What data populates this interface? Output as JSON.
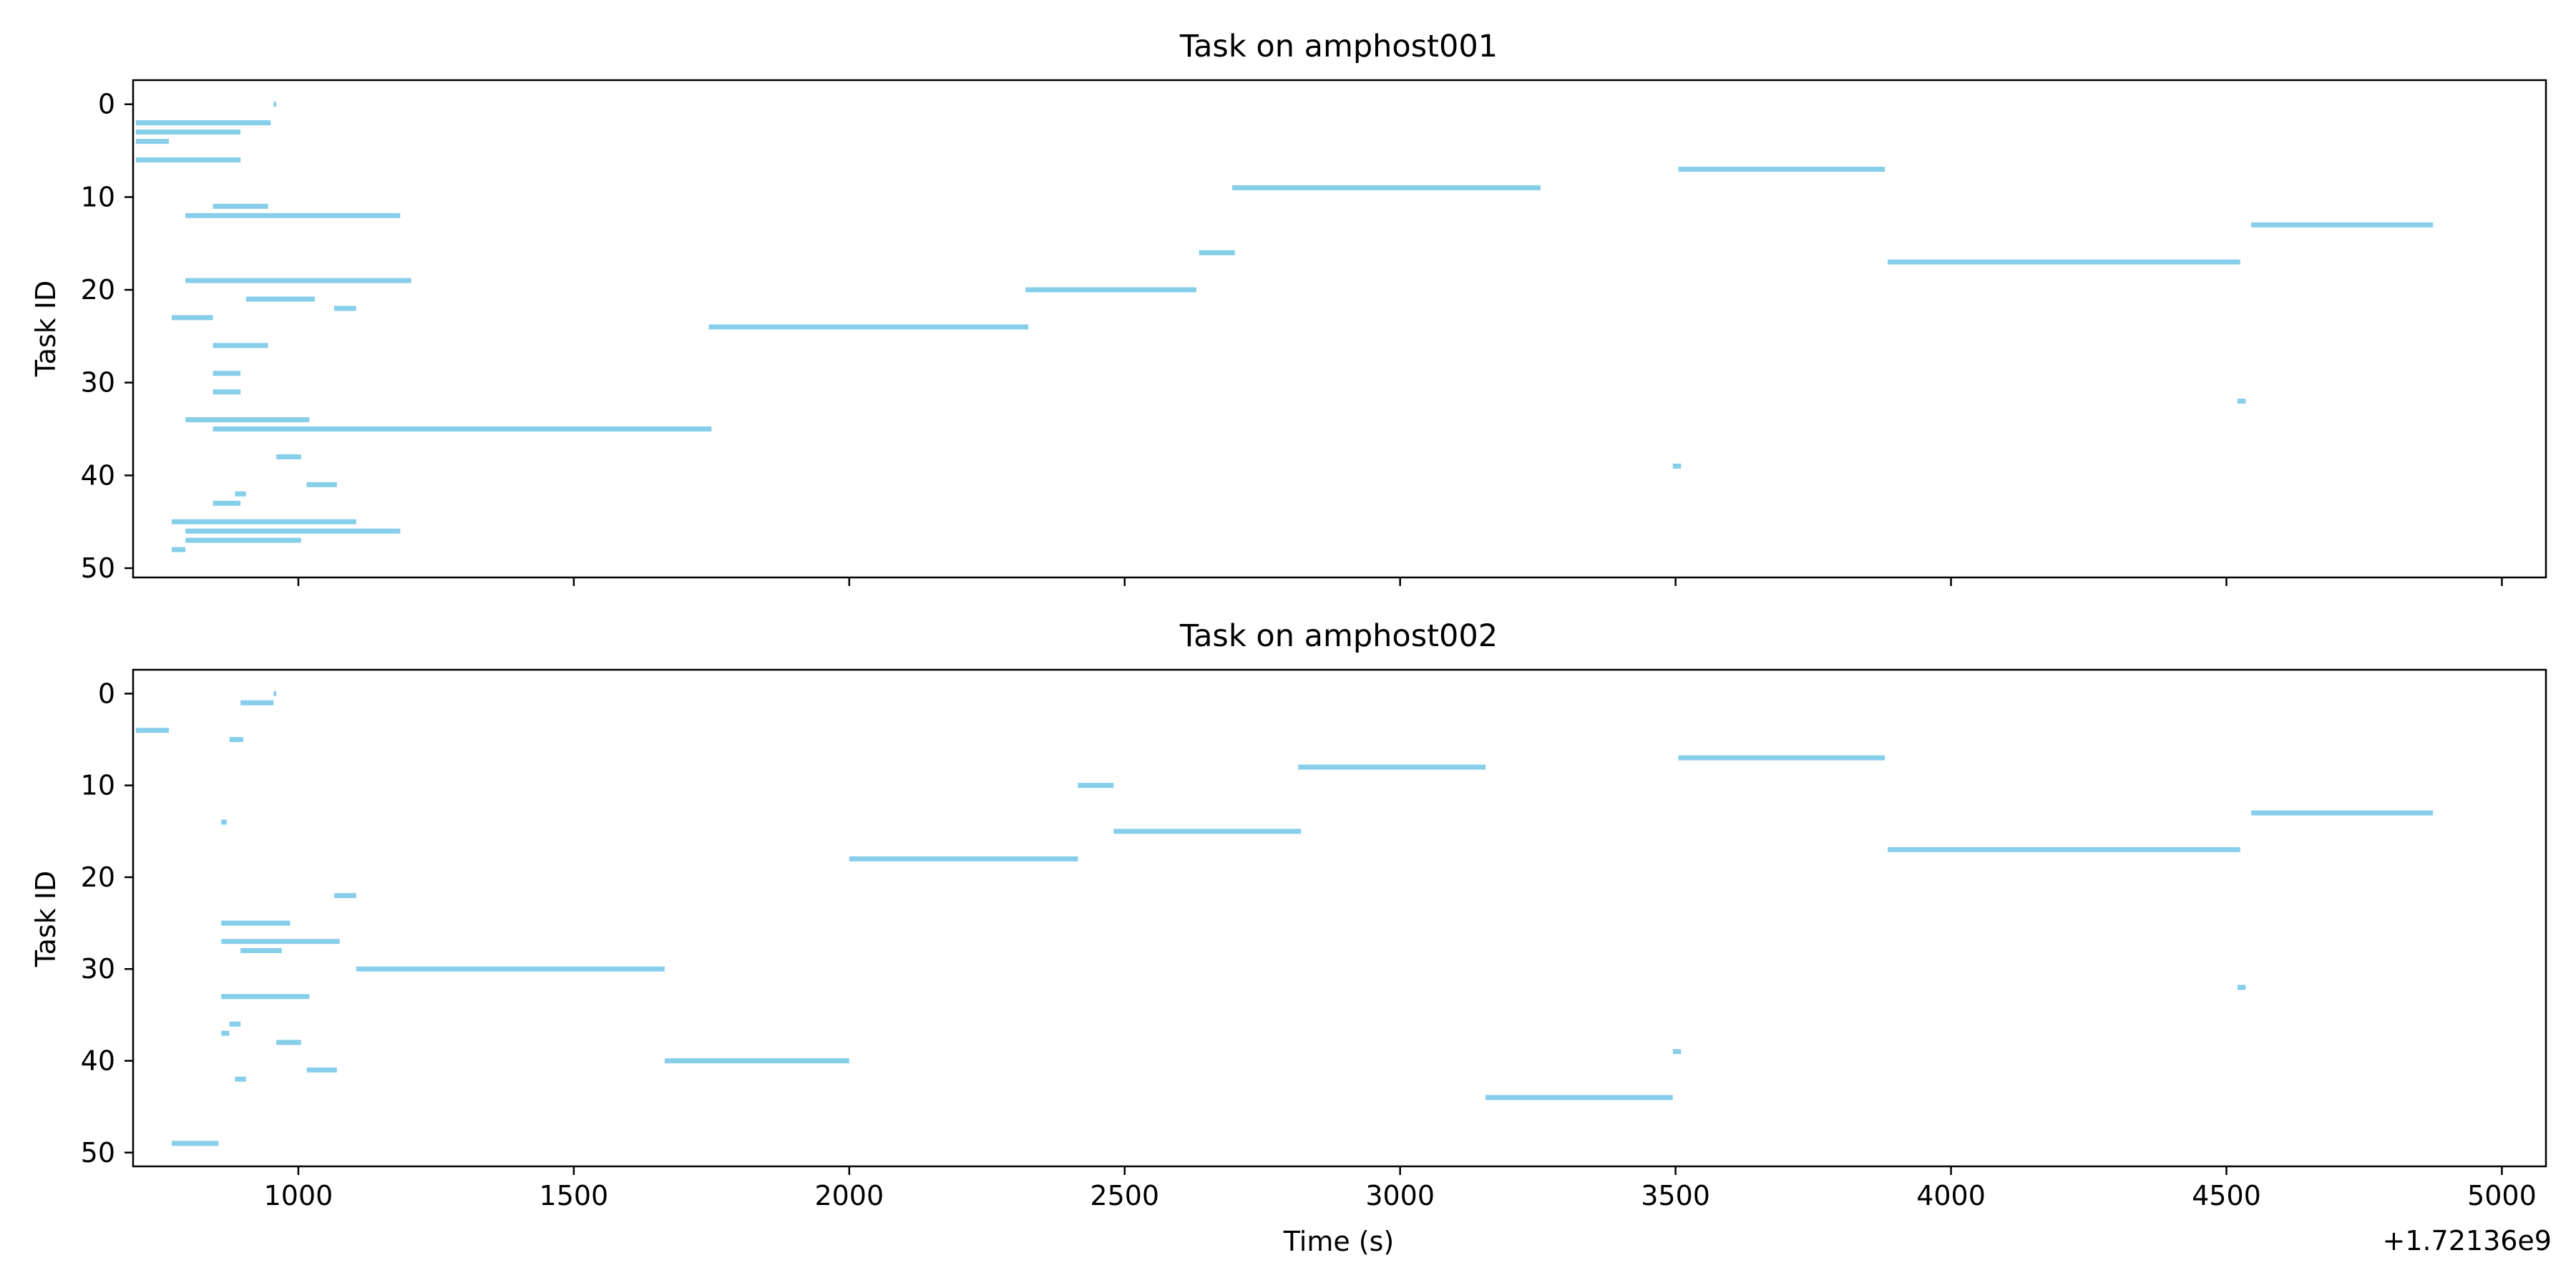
{
  "chart_data": [
    {
      "type": "bar",
      "title": "Task on amphost001",
      "xlabel": "",
      "ylabel": "Task ID",
      "xlim": [
        700,
        5080
      ],
      "ylim": [
        51,
        -2.6
      ],
      "x_ticks": [
        1000,
        1500,
        2000,
        2500,
        3000,
        3500,
        4000,
        4500,
        5000
      ],
      "x_tick_labels_shown": false,
      "y_ticks": [
        0,
        10,
        20,
        30,
        40,
        50
      ],
      "y_tick_labels": [
        "0",
        "10",
        "20",
        "30",
        "40",
        "50"
      ],
      "grid": false,
      "bar_color": "#87ceeb",
      "tasks": [
        {
          "id": 0,
          "start": 955,
          "end": 960
        },
        {
          "id": 2,
          "start": 705,
          "end": 950
        },
        {
          "id": 3,
          "start": 705,
          "end": 895
        },
        {
          "id": 4,
          "start": 705,
          "end": 765
        },
        {
          "id": 6,
          "start": 705,
          "end": 895
        },
        {
          "id": 7,
          "start": 3505,
          "end": 3880
        },
        {
          "id": 9,
          "start": 2695,
          "end": 3255
        },
        {
          "id": 11,
          "start": 845,
          "end": 945
        },
        {
          "id": 12,
          "start": 795,
          "end": 1185
        },
        {
          "id": 13,
          "start": 4545,
          "end": 4875
        },
        {
          "id": 16,
          "start": 2635,
          "end": 2700
        },
        {
          "id": 17,
          "start": 3885,
          "end": 4525
        },
        {
          "id": 19,
          "start": 795,
          "end": 1205
        },
        {
          "id": 20,
          "start": 2320,
          "end": 2630
        },
        {
          "id": 21,
          "start": 905,
          "end": 1030
        },
        {
          "id": 22,
          "start": 1065,
          "end": 1105
        },
        {
          "id": 23,
          "start": 770,
          "end": 845
        },
        {
          "id": 24,
          "start": 1745,
          "end": 2325
        },
        {
          "id": 26,
          "start": 845,
          "end": 945
        },
        {
          "id": 29,
          "start": 845,
          "end": 895
        },
        {
          "id": 31,
          "start": 845,
          "end": 895
        },
        {
          "id": 32,
          "start": 4520,
          "end": 4535
        },
        {
          "id": 34,
          "start": 795,
          "end": 1020
        },
        {
          "id": 35,
          "start": 845,
          "end": 1750
        },
        {
          "id": 38,
          "start": 960,
          "end": 1005
        },
        {
          "id": 39,
          "start": 3495,
          "end": 3510
        },
        {
          "id": 41,
          "start": 1015,
          "end": 1070
        },
        {
          "id": 42,
          "start": 885,
          "end": 905
        },
        {
          "id": 43,
          "start": 845,
          "end": 895
        },
        {
          "id": 45,
          "start": 770,
          "end": 1105
        },
        {
          "id": 46,
          "start": 795,
          "end": 1185
        },
        {
          "id": 47,
          "start": 795,
          "end": 1005
        },
        {
          "id": 48,
          "start": 770,
          "end": 795
        }
      ]
    },
    {
      "type": "bar",
      "title": "Task on amphost002",
      "xlabel": "Time (s)",
      "ylabel": "Task ID",
      "offset_label": "+1.72136e9",
      "xlim": [
        700,
        5080
      ],
      "ylim": [
        51.5,
        -2.6
      ],
      "x_ticks": [
        1000,
        1500,
        2000,
        2500,
        3000,
        3500,
        4000,
        4500,
        5000
      ],
      "x_tick_labels": [
        "1000",
        "1500",
        "2000",
        "2500",
        "3000",
        "3500",
        "4000",
        "4500",
        "5000"
      ],
      "x_tick_labels_shown": true,
      "y_ticks": [
        0,
        10,
        20,
        30,
        40,
        50
      ],
      "y_tick_labels": [
        "0",
        "10",
        "20",
        "30",
        "40",
        "50"
      ],
      "grid": false,
      "bar_color": "#87ceeb",
      "tasks": [
        {
          "id": 0,
          "start": 955,
          "end": 960
        },
        {
          "id": 1,
          "start": 895,
          "end": 955
        },
        {
          "id": 4,
          "start": 705,
          "end": 765
        },
        {
          "id": 5,
          "start": 875,
          "end": 900
        },
        {
          "id": 7,
          "start": 3505,
          "end": 3880
        },
        {
          "id": 8,
          "start": 2815,
          "end": 3155
        },
        {
          "id": 10,
          "start": 2415,
          "end": 2480
        },
        {
          "id": 13,
          "start": 4545,
          "end": 4875
        },
        {
          "id": 14,
          "start": 860,
          "end": 870
        },
        {
          "id": 15,
          "start": 2480,
          "end": 2820
        },
        {
          "id": 17,
          "start": 3885,
          "end": 4525
        },
        {
          "id": 18,
          "start": 2000,
          "end": 2415
        },
        {
          "id": 22,
          "start": 1065,
          "end": 1105
        },
        {
          "id": 25,
          "start": 860,
          "end": 985
        },
        {
          "id": 27,
          "start": 860,
          "end": 1075
        },
        {
          "id": 28,
          "start": 895,
          "end": 970
        },
        {
          "id": 30,
          "start": 1105,
          "end": 1665
        },
        {
          "id": 32,
          "start": 4520,
          "end": 4535
        },
        {
          "id": 33,
          "start": 860,
          "end": 1020
        },
        {
          "id": 36,
          "start": 875,
          "end": 895
        },
        {
          "id": 37,
          "start": 860,
          "end": 875
        },
        {
          "id": 38,
          "start": 960,
          "end": 1005
        },
        {
          "id": 39,
          "start": 3495,
          "end": 3510
        },
        {
          "id": 40,
          "start": 1665,
          "end": 2000
        },
        {
          "id": 41,
          "start": 1015,
          "end": 1070
        },
        {
          "id": 42,
          "start": 885,
          "end": 905
        },
        {
          "id": 44,
          "start": 3155,
          "end": 3495
        },
        {
          "id": 49,
          "start": 770,
          "end": 855
        }
      ]
    }
  ]
}
